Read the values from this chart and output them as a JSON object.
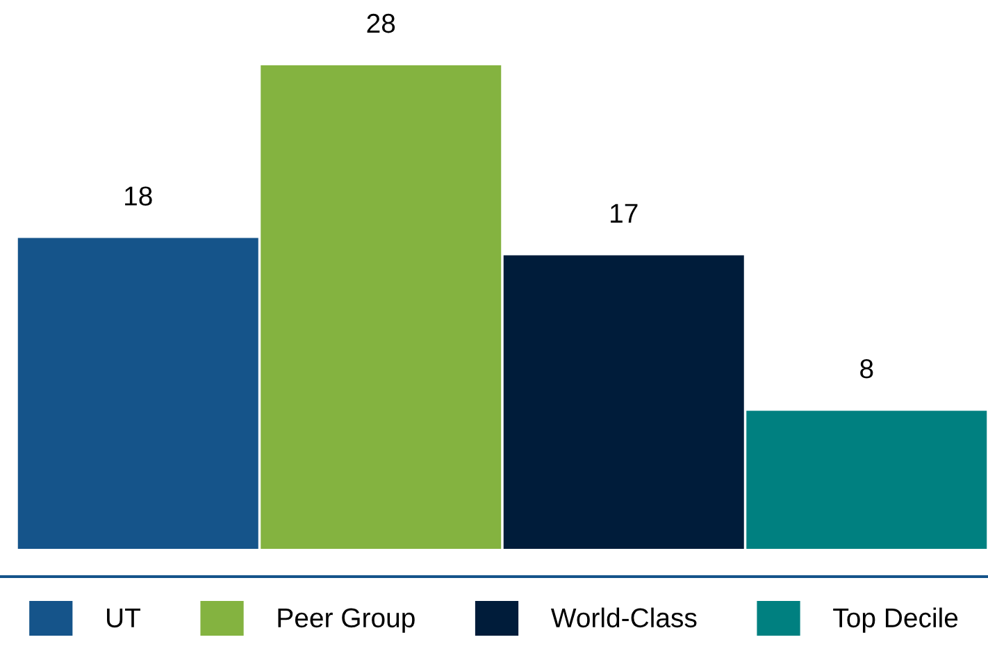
{
  "chart_data": {
    "type": "bar",
    "categories": [
      null
    ],
    "series": [
      {
        "name": "UT",
        "color": "#15548a",
        "values": [
          18
        ]
      },
      {
        "name": "Peer Group",
        "color": "#84b340",
        "values": [
          28
        ]
      },
      {
        "name": "World-Class",
        "color": "#001c3a",
        "values": [
          17
        ]
      },
      {
        "name": "Top Decile",
        "color": "#008080",
        "values": [
          8
        ]
      }
    ],
    "data_labels": true,
    "legend": "bottom"
  }
}
